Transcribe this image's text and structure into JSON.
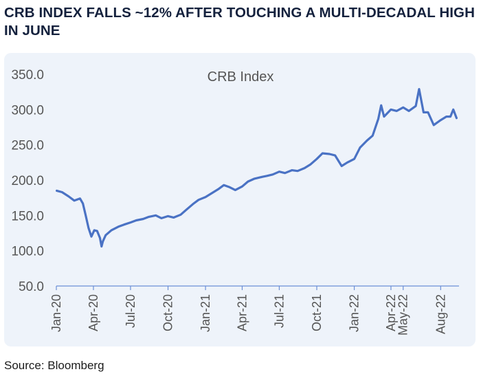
{
  "headline": "CRB INDEX FALLS ~12% AFTER TOUCHING A MULTI-DECADAL HIGH IN JUNE",
  "source": "Source: Bloomberg",
  "colors": {
    "line": "#4a72c4",
    "panel": "#eef3fa",
    "headline": "#14213d",
    "axis": "#6b8fd6"
  },
  "chart_data": {
    "type": "line",
    "title": "CRB Index",
    "xlabel": "",
    "ylabel": "",
    "ylim": [
      50,
      350
    ],
    "yticks": [
      "350.0",
      "300.0",
      "250.0",
      "200.0",
      "150.0",
      "100.0",
      "50.0"
    ],
    "xticks": [
      "Jan-20",
      "Apr-20",
      "Jul-20",
      "Oct-20",
      "Jan-21",
      "Apr-21",
      "Jul-21",
      "Oct-21",
      "Jan-22",
      "Apr-22",
      "May-22",
      "Aug-22"
    ],
    "xlim": [
      "2020-01-01",
      "2022-09-15"
    ],
    "grid": false,
    "legend": "none",
    "series": [
      {
        "x": [
          "2020-01-02",
          "2020-01-15",
          "2020-01-31",
          "2020-02-14",
          "2020-02-28",
          "2020-03-06",
          "2020-03-13",
          "2020-03-20",
          "2020-03-27",
          "2020-04-03",
          "2020-04-10",
          "2020-04-17",
          "2020-04-21",
          "2020-04-24",
          "2020-05-01",
          "2020-05-15",
          "2020-06-01",
          "2020-06-15",
          "2020-07-01",
          "2020-07-15",
          "2020-08-01",
          "2020-08-15",
          "2020-09-01",
          "2020-09-15",
          "2020-10-01",
          "2020-10-15",
          "2020-11-01",
          "2020-11-15",
          "2020-12-01",
          "2020-12-15",
          "2021-01-01",
          "2021-01-15",
          "2021-02-01",
          "2021-02-15",
          "2021-03-01",
          "2021-03-15",
          "2021-04-01",
          "2021-04-15",
          "2021-05-01",
          "2021-05-15",
          "2021-06-01",
          "2021-06-15",
          "2021-07-01",
          "2021-07-15",
          "2021-08-01",
          "2021-08-15",
          "2021-09-01",
          "2021-09-15",
          "2021-10-01",
          "2021-10-15",
          "2021-11-01",
          "2021-11-15",
          "2021-12-01",
          "2021-12-15",
          "2022-01-01",
          "2022-01-15",
          "2022-02-01",
          "2022-02-15",
          "2022-03-01",
          "2022-03-08",
          "2022-03-15",
          "2022-04-01",
          "2022-04-15",
          "2022-05-01",
          "2022-05-15",
          "2022-06-01",
          "2022-06-09",
          "2022-06-20",
          "2022-07-01",
          "2022-07-15",
          "2022-08-01",
          "2022-08-15",
          "2022-08-25",
          "2022-09-01",
          "2022-09-09"
        ],
        "values": [
          185,
          183,
          177,
          171,
          174,
          167,
          150,
          132,
          120,
          129,
          128,
          118,
          106,
          113,
          122,
          129,
          134,
          137,
          140,
          143,
          145,
          148,
          150,
          146,
          149,
          147,
          151,
          158,
          166,
          172,
          176,
          181,
          187,
          193,
          190,
          186,
          191,
          198,
          202,
          204,
          206,
          208,
          212,
          210,
          214,
          213,
          217,
          222,
          230,
          238,
          237,
          235,
          220,
          225,
          230,
          246,
          256,
          263,
          287,
          306,
          290,
          300,
          298,
          303,
          298,
          305,
          329,
          296,
          296,
          278,
          285,
          290,
          290,
          300,
          288
        ]
      }
    ]
  }
}
